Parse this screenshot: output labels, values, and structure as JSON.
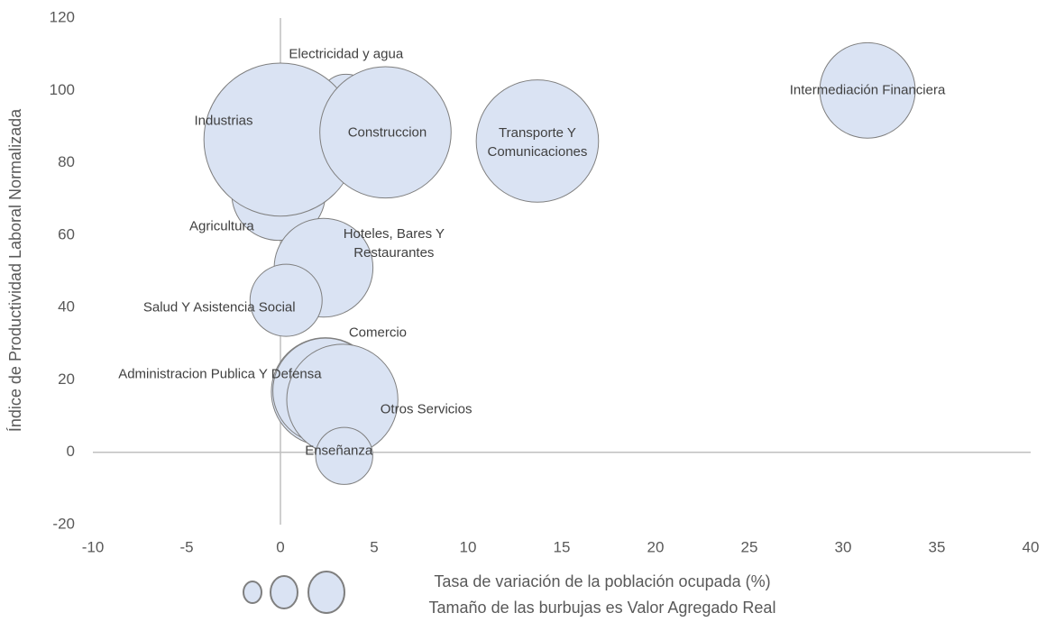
{
  "chart_data": {
    "type": "bubble",
    "x_label": "Tasa de variación de la población ocupada (%)",
    "y_label": "Índice de Productividad Laboral Normalizada",
    "note": "Tamaño de las burbujas es Valor Agregado Real",
    "color": "#dae3f3",
    "edge_color": "#7f7f7f",
    "categories": [
      "Electricidad y agua",
      "Agricultura",
      "Industrias",
      "Construccion",
      "Transporte Y Comunicaciones",
      "Intermediación Financiera",
      "Hoteles, Bares Y Restaurantes",
      "Salud Y Asistencia Social",
      "Comercio",
      "Administracion Publica Y Defensa",
      "Otros Servicios",
      "Enseñanza"
    ],
    "x": [
      3.5,
      -0.1,
      0,
      5.6,
      13.7,
      31.3,
      2.3,
      0.3,
      2.4,
      2.4,
      3.3,
      3.4
    ],
    "values": [
      97,
      71.5,
      86.4,
      88.4,
      86,
      100,
      51,
      42,
      16.7,
      17,
      14.5,
      -1
    ],
    "sizes": [
      9,
      27,
      72,
      53,
      46,
      28,
      30,
      16,
      36,
      34,
      38,
      10
    ],
    "xlim": [
      -10,
      40
    ],
    "xticks": [
      -10,
      -5,
      0,
      5,
      10,
      15,
      20,
      25,
      30,
      35,
      40
    ],
    "ylim": [
      -20,
      120
    ],
    "yticks": [
      -20,
      0,
      20,
      40,
      60,
      80,
      100,
      120
    ]
  }
}
